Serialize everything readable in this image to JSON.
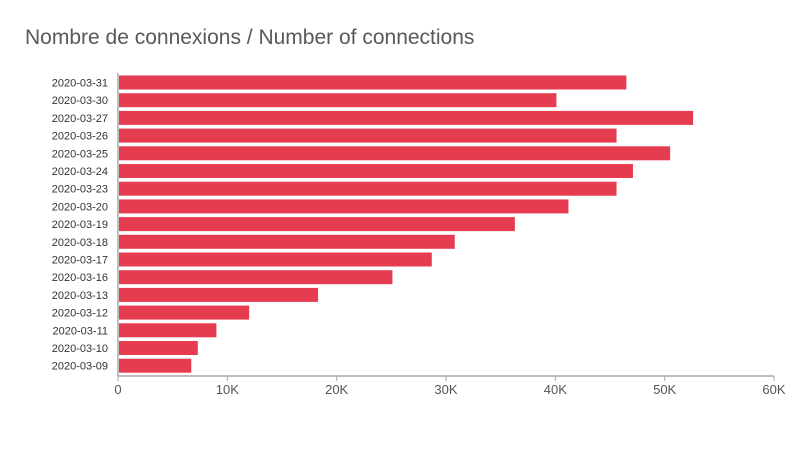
{
  "chart_data": {
    "type": "bar",
    "orientation": "horizontal",
    "title": "Nombre de connexions / Number of connections",
    "xlabel": "",
    "ylabel": "",
    "bar_color": "#e63c50",
    "axis_color": "#aaaaaa",
    "grid": false,
    "legend": "none",
    "xlim": [
      0,
      60000
    ],
    "x_ticks": [
      0,
      10000,
      20000,
      30000,
      40000,
      50000,
      60000
    ],
    "x_tick_labels": [
      "0",
      "10K",
      "20K",
      "30K",
      "40K",
      "50K",
      "60K"
    ],
    "categories": [
      "2020-03-31",
      "2020-03-30",
      "2020-03-27",
      "2020-03-26",
      "2020-03-25",
      "2020-03-24",
      "2020-03-23",
      "2020-03-20",
      "2020-03-19",
      "2020-03-18",
      "2020-03-17",
      "2020-03-16",
      "2020-03-13",
      "2020-03-12",
      "2020-03-11",
      "2020-03-10",
      "2020-03-09"
    ],
    "values": [
      46500,
      40100,
      52600,
      45600,
      50500,
      47100,
      45600,
      41200,
      36300,
      30800,
      28700,
      25100,
      18300,
      12000,
      9000,
      7300,
      6700
    ]
  }
}
